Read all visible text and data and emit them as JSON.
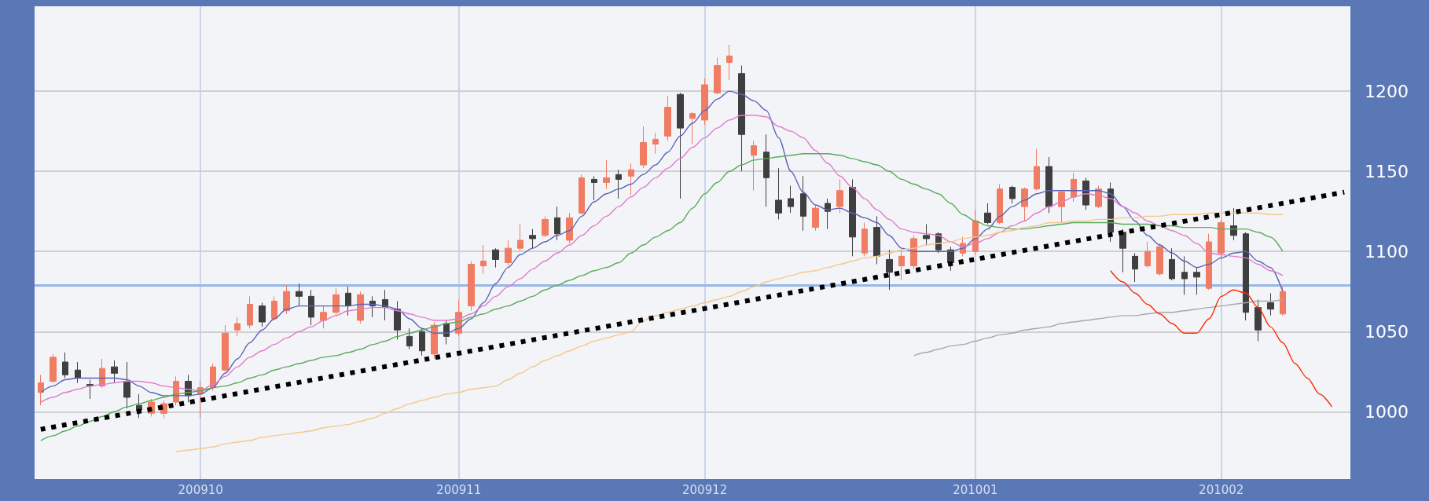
{
  "chart_data": {
    "type": "candlestick",
    "grid": true,
    "marker": "none",
    "categories": [
      null,
      null,
      null,
      null,
      null,
      null,
      null,
      null,
      null,
      null,
      null,
      null,
      null,
      "200910",
      null,
      null,
      null,
      null,
      null,
      null,
      null,
      null,
      null,
      null,
      null,
      null,
      null,
      null,
      null,
      null,
      null,
      null,
      null,
      null,
      "200911",
      null,
      null,
      null,
      null,
      null,
      null,
      null,
      null,
      null,
      null,
      null,
      null,
      null,
      null,
      null,
      null,
      null,
      null,
      null,
      "200912",
      null,
      null,
      null,
      null,
      null,
      null,
      null,
      null,
      null,
      null,
      null,
      null,
      null,
      null,
      null,
      null,
      null,
      null,
      null,
      null,
      null,
      "201001",
      null,
      null,
      null,
      null,
      null,
      null,
      null,
      null,
      null,
      null,
      null,
      null,
      null,
      null,
      null,
      null,
      null,
      null,
      null,
      "201002",
      null,
      null,
      null,
      null,
      null,
      null,
      null,
      null,
      null,
      null
    ],
    "ohlc": [
      [
        1012,
        1023,
        1004,
        1018
      ],
      [
        1019,
        1036,
        1018,
        1034
      ],
      [
        1031,
        1037,
        1021,
        1023
      ],
      [
        1026,
        1031,
        1018,
        1021
      ],
      [
        1017,
        1020,
        1008,
        1016
      ],
      [
        1016,
        1033,
        1015,
        1027
      ],
      [
        1028,
        1032,
        1018,
        1024
      ],
      [
        1019,
        1031,
        1002,
        1009
      ],
      [
        1004,
        1011,
        996,
        1001
      ],
      [
        999,
        1008,
        997,
        1006
      ],
      [
        999,
        1007,
        996,
        1005
      ],
      [
        1006,
        1022,
        1004,
        1019
      ],
      [
        1019,
        1023,
        1006,
        1010
      ],
      [
        1011,
        1019,
        996,
        1015
      ],
      [
        1015,
        1030,
        1013,
        1028
      ],
      [
        1026,
        1054,
        1025,
        1049
      ],
      [
        1051,
        1059,
        1047,
        1055
      ],
      [
        1054,
        1072,
        1052,
        1067
      ],
      [
        1066,
        1068,
        1053,
        1056
      ],
      [
        1058,
        1072,
        1057,
        1069
      ],
      [
        1063,
        1079,
        1061,
        1075
      ],
      [
        1075,
        1080,
        1066,
        1072
      ],
      [
        1072,
        1076,
        1054,
        1059
      ],
      [
        1057,
        1066,
        1052,
        1062
      ],
      [
        1062,
        1077,
        1060,
        1073
      ],
      [
        1074,
        1078,
        1060,
        1066
      ],
      [
        1057,
        1075,
        1055,
        1073
      ],
      [
        1069,
        1072,
        1059,
        1066
      ],
      [
        1070,
        1076,
        1057,
        1065
      ],
      [
        1064,
        1069,
        1045,
        1051
      ],
      [
        1047,
        1052,
        1039,
        1041
      ],
      [
        1050,
        1052,
        1035,
        1038
      ],
      [
        1036,
        1056,
        1033,
        1054
      ],
      [
        1055,
        1057,
        1042,
        1047
      ],
      [
        1049,
        1070,
        1047,
        1062
      ],
      [
        1066,
        1094,
        1063,
        1092
      ],
      [
        1091,
        1104,
        1086,
        1094
      ],
      [
        1101,
        1102,
        1090,
        1095
      ],
      [
        1093,
        1107,
        1091,
        1102
      ],
      [
        1102,
        1117,
        1100,
        1107
      ],
      [
        1110,
        1114,
        1102,
        1108
      ],
      [
        1110,
        1122,
        1109,
        1120
      ],
      [
        1121,
        1128,
        1107,
        1111
      ],
      [
        1107,
        1124,
        1105,
        1121
      ],
      [
        1124,
        1148,
        1123,
        1146
      ],
      [
        1145,
        1147,
        1132,
        1143
      ],
      [
        1143,
        1157,
        1139,
        1146
      ],
      [
        1148,
        1151,
        1133,
        1145
      ],
      [
        1147,
        1155,
        1135,
        1151
      ],
      [
        1154,
        1178,
        1152,
        1168
      ],
      [
        1167,
        1174,
        1161,
        1170
      ],
      [
        1172,
        1197,
        1169,
        1190
      ],
      [
        1198,
        1199,
        1133,
        1177
      ],
      [
        1183,
        1187,
        1167,
        1186
      ],
      [
        1182,
        1208,
        1179,
        1204
      ],
      [
        1199,
        1221,
        1198,
        1216
      ],
      [
        1218,
        1229,
        1207,
        1222
      ],
      [
        1211,
        1216,
        1150,
        1173
      ],
      [
        1160,
        1169,
        1138,
        1166
      ],
      [
        1162,
        1173,
        1128,
        1146
      ],
      [
        1132,
        1152,
        1120,
        1124
      ],
      [
        1133,
        1141,
        1124,
        1128
      ],
      [
        1136,
        1147,
        1113,
        1122
      ],
      [
        1115,
        1129,
        1113,
        1127
      ],
      [
        1130,
        1133,
        1114,
        1125
      ],
      [
        1128,
        1145,
        1124,
        1138
      ],
      [
        1140,
        1145,
        1097,
        1109
      ],
      [
        1099,
        1118,
        1097,
        1114
      ],
      [
        1115,
        1122,
        1092,
        1097
      ],
      [
        1095,
        1101,
        1076,
        1087
      ],
      [
        1091,
        1101,
        1082,
        1097
      ],
      [
        1091,
        1110,
        1089,
        1108
      ],
      [
        1110,
        1117,
        1104,
        1108
      ],
      [
        1111,
        1112,
        1099,
        1101
      ],
      [
        1101,
        1103,
        1088,
        1093
      ],
      [
        1099,
        1109,
        1097,
        1105
      ],
      [
        1100,
        1126,
        1098,
        1119
      ],
      [
        1124,
        1130,
        1117,
        1118
      ],
      [
        1118,
        1142,
        1117,
        1139
      ],
      [
        1140,
        1141,
        1130,
        1133
      ],
      [
        1128,
        1140,
        1119,
        1139
      ],
      [
        1139,
        1164,
        1138,
        1153
      ],
      [
        1153,
        1159,
        1124,
        1128
      ],
      [
        1128,
        1138,
        1118,
        1137
      ],
      [
        1134,
        1149,
        1131,
        1145
      ],
      [
        1144,
        1146,
        1126,
        1129
      ],
      [
        1128,
        1141,
        1127,
        1139
      ],
      [
        1139,
        1143,
        1106,
        1112
      ],
      [
        1112,
        1114,
        1087,
        1102
      ],
      [
        1097,
        1099,
        1081,
        1089
      ],
      [
        1091,
        1106,
        1090,
        1100
      ],
      [
        1086,
        1105,
        1085,
        1103
      ],
      [
        1095,
        1102,
        1082,
        1083
      ],
      [
        1087,
        1097,
        1073,
        1083
      ],
      [
        1087,
        1090,
        1073,
        1084
      ],
      [
        1077,
        1111,
        1076,
        1106
      ],
      [
        1099,
        1120,
        1095,
        1118
      ],
      [
        1116,
        1127,
        1107,
        1110
      ],
      [
        1111,
        1112,
        1057,
        1062
      ],
      [
        1065,
        1070,
        1044,
        1051
      ],
      [
        1068,
        1074,
        1060,
        1064
      ],
      [
        1061,
        1078,
        1060,
        1075
      ],
      null,
      null,
      null,
      null,
      null
    ],
    "colors": [
      "#f07c64",
      "#f07c64",
      "#3f3f3f",
      "#3f3f3f",
      "#3f3f3f",
      "#f07c64",
      "#3f3f3f",
      "#3f3f3f",
      "#3f3f3f",
      "#f07c64",
      "#f07c64",
      "#f07c64",
      "#3f3f3f",
      "#f07c64",
      "#f07c64",
      "#f07c64",
      "#f07c64",
      "#f07c64",
      "#3f3f3f",
      "#f07c64",
      "#f07c64",
      "#3f3f3f",
      "#3f3f3f",
      "#f07c64",
      "#f07c64",
      "#3f3f3f",
      "#f07c64",
      "#3f3f3f",
      "#3f3f3f",
      "#3f3f3f",
      "#3f3f3f",
      "#3f3f3f",
      "#f07c64",
      "#3f3f3f",
      "#f07c64",
      "#f07c64",
      "#f07c64",
      "#3f3f3f",
      "#f07c64",
      "#f07c64",
      "#3f3f3f",
      "#f07c64",
      "#3f3f3f",
      "#f07c64",
      "#f07c64",
      "#3f3f3f",
      "#f07c64",
      "#3f3f3f",
      "#f07c64",
      "#f07c64",
      "#f07c64",
      "#f07c64",
      "#3f3f3f",
      "#f07c64",
      "#f07c64",
      "#f07c64",
      "#f07c64",
      "#3f3f3f",
      "#f07c64",
      "#3f3f3f",
      "#3f3f3f",
      "#3f3f3f",
      "#3f3f3f",
      "#f07c64",
      "#3f3f3f",
      "#f07c64",
      "#3f3f3f",
      "#f07c64",
      "#3f3f3f",
      "#3f3f3f",
      "#f07c64",
      "#f07c64",
      "#3f3f3f",
      "#3f3f3f",
      "#3f3f3f",
      "#f07c64",
      "#f07c64",
      "#3f3f3f",
      "#f07c64",
      "#3f3f3f",
      "#f07c64",
      "#f07c64",
      "#3f3f3f",
      "#f07c64",
      "#f07c64",
      "#3f3f3f",
      "#f07c64",
      "#3f3f3f",
      "#3f3f3f",
      "#3f3f3f",
      "#f07c64",
      "#f07c64",
      "#3f3f3f",
      "#3f3f3f",
      "#3f3f3f",
      "#f07c64",
      "#f07c64",
      "#3f3f3f",
      "#3f3f3f",
      "#3f3f3f",
      "#3f3f3f",
      "#f07c64",
      null,
      null,
      null,
      null,
      null
    ],
    "series": [
      {
        "type": "line",
        "color": "#5a64b4",
        "values": [
          1012,
          1016,
          1020,
          1021,
          1021,
          1021,
          1021,
          1020,
          1016,
          1012,
          1010,
          1010,
          1010,
          1011,
          1015,
          1024,
          1033,
          1043,
          1051,
          1058,
          1064,
          1066,
          1066,
          1066,
          1066,
          1066,
          1067,
          1067,
          1066,
          1064,
          1058,
          1052,
          1049,
          1049,
          1052,
          1058,
          1068,
          1080,
          1090,
          1098,
          1102,
          1106,
          1110,
          1113,
          1122,
          1131,
          1136,
          1139,
          1142,
          1148,
          1154,
          1162,
          1172,
          1180,
          1188,
          1195,
          1200,
          1198,
          1194,
          1188,
          1171,
          1150,
          1137,
          1129,
          1126,
          1127,
          1124,
          1121,
          1118,
          1110,
          1102,
          1100,
          1100,
          1100,
          1100,
          1102,
          1108,
          1114,
          1122,
          1128,
          1132,
          1136,
          1138,
          1138,
          1138,
          1138,
          1138,
          1136,
          1128,
          1119,
          1110,
          1104,
          1099,
          1094,
          1090,
          1092,
          1096,
          1099,
          1100,
          1094,
          1090,
          1075,
          null,
          null,
          null,
          null,
          null
        ]
      },
      {
        "type": "line",
        "color": "#e07ccc",
        "values": [
          1006,
          1009,
          1012,
          1014,
          1016,
          1017,
          1018,
          1019,
          1019,
          1018,
          1016,
          1015,
          1014,
          1013,
          1017,
          1022,
          1028,
          1034,
          1038,
          1042,
          1046,
          1050,
          1053,
          1057,
          1060,
          1063,
          1064,
          1065,
          1065,
          1063,
          1061,
          1059,
          1057,
          1057,
          1058,
          1061,
          1066,
          1072,
          1078,
          1083,
          1089,
          1094,
          1099,
          1104,
          1110,
          1116,
          1122,
          1128,
          1134,
          1140,
          1146,
          1152,
          1158,
          1165,
          1171,
          1177,
          1182,
          1185,
          1185,
          1184,
          1178,
          1175,
          1171,
          1163,
          1155,
          1147,
          1140,
          1133,
          1126,
          1120,
          1114,
          1112,
          1111,
          1110,
          1106,
          1103,
          1105,
          1108,
          1112,
          1116,
          1119,
          1124,
          1128,
          1131,
          1134,
          1136,
          1135,
          1133,
          1128,
          1124,
          1119,
          1116,
          1113,
          1110,
          1105,
          1099,
          1098,
          1097,
          1096,
          1092,
          1088,
          1085,
          null,
          null,
          null,
          null,
          null
        ]
      },
      {
        "type": "line",
        "color": "#5aaa5a",
        "values": [
          982,
          985,
          988,
          991,
          994,
          997,
          1000,
          1003,
          1005,
          1007,
          1009,
          1011,
          1012,
          1013,
          1015,
          1016,
          1018,
          1021,
          1023,
          1026,
          1028,
          1030,
          1032,
          1034,
          1035,
          1037,
          1039,
          1042,
          1044,
          1047,
          1049,
          1051,
          1053,
          1055,
          1056,
          1059,
          1061,
          1064,
          1066,
          1069,
          1072,
          1076,
          1079,
          1082,
          1085,
          1088,
          1090,
          1093,
          1099,
          1104,
          1109,
          1113,
          1118,
          1127,
          1136,
          1143,
          1150,
          1154,
          1157,
          1158,
          1159,
          1160,
          1161,
          1161,
          1161,
          1160,
          1158,
          1156,
          1154,
          1150,
          1145,
          1142,
          1139,
          1136,
          1130,
          1123,
          1119,
          1116,
          1115,
          1114,
          1114,
          1115,
          1116,
          1117,
          1118,
          1118,
          1118,
          1118,
          1117,
          1117,
          1117,
          1116,
          1116,
          1115,
          1115,
          1115,
          1114,
          1114,
          1114,
          1112,
          1109,
          1100,
          null,
          null,
          null,
          null,
          null
        ]
      },
      {
        "type": "line",
        "color": "#f4c88c",
        "values": [
          null,
          null,
          null,
          null,
          null,
          null,
          null,
          null,
          null,
          null,
          null,
          975,
          976,
          977,
          978,
          980,
          981,
          982,
          984,
          985,
          986,
          987,
          988,
          990,
          991,
          992,
          994,
          996,
          999,
          1002,
          1005,
          1007,
          1009,
          1011,
          1012,
          1014,
          1015,
          1016,
          1020,
          1024,
          1028,
          1032,
          1035,
          1038,
          1041,
          1044,
          1046,
          1048,
          1050,
          1057,
          1060,
          1062,
          1064,
          1066,
          1068,
          1070,
          1072,
          1075,
          1078,
          1081,
          1083,
          1085,
          1087,
          1088,
          1090,
          1092,
          1094,
          1096,
          1097,
          1099,
          1101,
          1102,
          1104,
          1105,
          1106,
          1108,
          1109,
          1110,
          1112,
          1113,
          1115,
          1116,
          1118,
          1118,
          1119,
          1119,
          1120,
          1120,
          1121,
          1121,
          1122,
          1122,
          1123,
          1123,
          1123,
          1124,
          1124,
          1124,
          1124,
          1124,
          1123,
          1123,
          null,
          null,
          null,
          null,
          null
        ]
      },
      {
        "type": "line",
        "color": "#a8a8a8",
        "values": [
          null,
          null,
          null,
          null,
          null,
          null,
          null,
          null,
          null,
          null,
          null,
          null,
          null,
          null,
          null,
          null,
          null,
          null,
          null,
          null,
          null,
          null,
          null,
          null,
          null,
          null,
          null,
          null,
          null,
          null,
          null,
          null,
          null,
          null,
          null,
          null,
          null,
          null,
          null,
          null,
          null,
          null,
          null,
          null,
          null,
          null,
          null,
          null,
          null,
          null,
          null,
          null,
          null,
          null,
          null,
          null,
          null,
          null,
          null,
          null,
          null,
          null,
          null,
          null,
          null,
          null,
          null,
          null,
          null,
          null,
          null,
          1035,
          1037,
          1039,
          1041,
          1042,
          1044,
          1046,
          1048,
          1049,
          1051,
          1052,
          1053,
          1055,
          1056,
          1057,
          1058,
          1059,
          1060,
          1060,
          1061,
          1062,
          1062,
          1063,
          1064,
          1065,
          1066,
          1067,
          1068,
          1069,
          1069,
          1070,
          null,
          null,
          null,
          null,
          null
        ]
      },
      {
        "type": "line",
        "color": "#000000",
        "line_style": "dotted",
        "values": [
          989,
          null,
          null,
          null,
          null,
          null,
          null,
          null,
          null,
          null,
          null,
          null,
          null,
          null,
          null,
          null,
          null,
          null,
          null,
          null,
          null,
          null,
          null,
          null,
          null,
          null,
          null,
          null,
          null,
          null,
          null,
          null,
          null,
          null,
          null,
          null,
          null,
          null,
          null,
          null,
          null,
          null,
          null,
          null,
          null,
          null,
          null,
          null,
          null,
          null,
          null,
          null,
          null,
          null,
          null,
          null,
          null,
          null,
          null,
          null,
          null,
          null,
          null,
          null,
          null,
          null,
          null,
          null,
          null,
          null,
          null,
          null,
          null,
          null,
          null,
          null,
          null,
          null,
          null,
          null,
          null,
          null,
          null,
          null,
          null,
          null,
          null,
          null,
          null,
          null,
          null,
          null,
          null,
          null,
          null,
          null,
          null,
          null,
          null,
          null,
          null,
          null,
          null,
          null,
          null,
          null,
          1137
        ]
      },
      {
        "type": "line",
        "color": "#ff2a00",
        "values": [
          null,
          null,
          null,
          null,
          null,
          null,
          null,
          null,
          null,
          null,
          null,
          null,
          null,
          null,
          null,
          null,
          null,
          null,
          null,
          null,
          null,
          null,
          null,
          null,
          null,
          null,
          null,
          null,
          null,
          null,
          null,
          null,
          null,
          null,
          null,
          null,
          null,
          null,
          null,
          null,
          null,
          null,
          null,
          null,
          null,
          null,
          null,
          null,
          null,
          null,
          null,
          null,
          null,
          null,
          null,
          null,
          null,
          null,
          null,
          null,
          null,
          null,
          null,
          null,
          null,
          null,
          null,
          null,
          null,
          null,
          null,
          null,
          null,
          null,
          null,
          null,
          null,
          null,
          null,
          null,
          null,
          null,
          null,
          null,
          null,
          null,
          null,
          1088,
          1081,
          1074,
          1067,
          1061,
          1055,
          1049,
          1049,
          1058,
          1072,
          1076,
          1074,
          1065,
          1053,
          1043,
          1030,
          1021,
          1011,
          1003,
          null
        ]
      }
    ],
    "ref_lines": [
      {
        "axis": "y",
        "value": 1079,
        "color": "#98b6e6"
      }
    ],
    "ylim": [
      958,
      1253
    ],
    "yticks": [
      1000,
      1050,
      1100,
      1150,
      1200
    ]
  }
}
